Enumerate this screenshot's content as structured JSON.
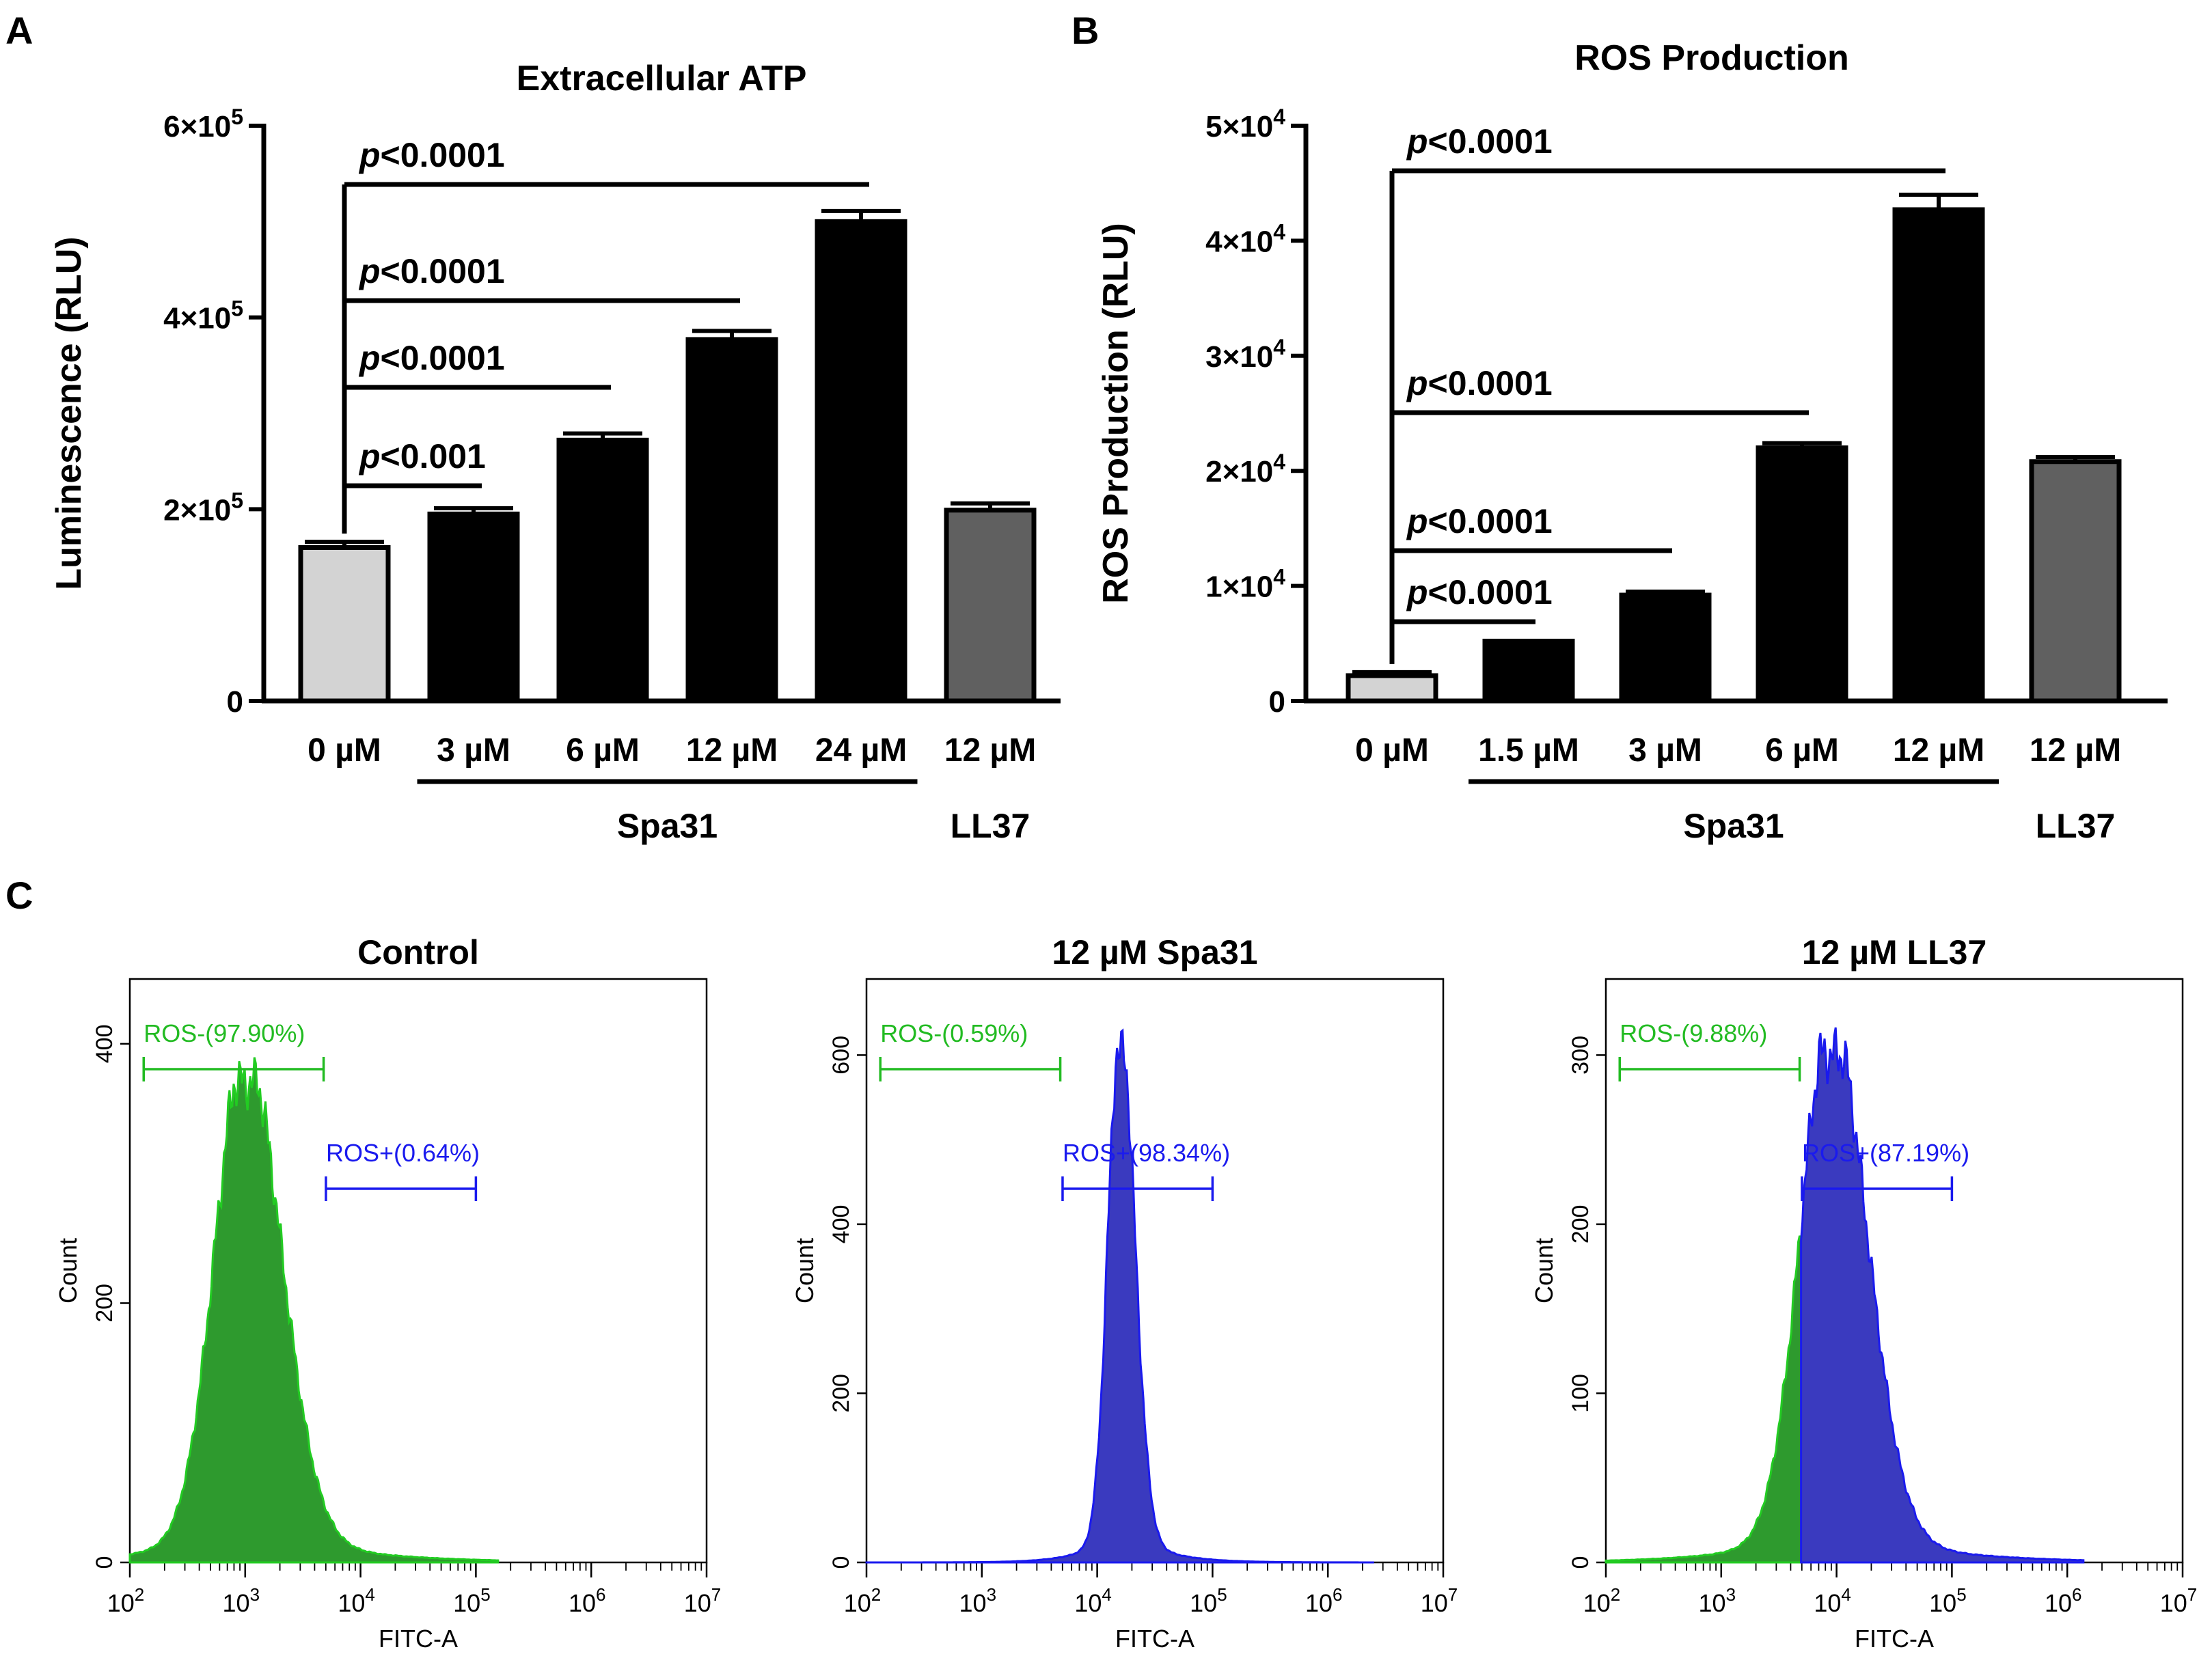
{
  "panels": {
    "A": "A",
    "B": "B",
    "C": "C"
  },
  "chart_data": [
    {
      "id": "A",
      "type": "bar",
      "title": "Extracellular ATP",
      "ylabel": "Luminescence (RLU)",
      "ylim": [
        0,
        600000
      ],
      "yticks": [
        {
          "value": 0,
          "mant": "0",
          "exp": ""
        },
        {
          "value": 200000,
          "mant": "2×10",
          "exp": "5"
        },
        {
          "value": 400000,
          "mant": "4×10",
          "exp": "5"
        },
        {
          "value": 600000,
          "mant": "6×10",
          "exp": "5"
        }
      ],
      "categories": [
        "0 µM",
        "3 µM",
        "6 µM",
        "12 µM",
        "24 µM",
        "12 µM"
      ],
      "values": [
        160000,
        195000,
        272000,
        377000,
        500000,
        199000
      ],
      "errors": [
        6000,
        6000,
        7000,
        9000,
        11000,
        7000
      ],
      "colors": [
        "#d3d3d3",
        "#000000",
        "#000000",
        "#000000",
        "#000000",
        "#606060"
      ],
      "groups": [
        {
          "label": "Spa31",
          "from": 1,
          "to": 4
        },
        {
          "label": "LL37",
          "from": 5,
          "to": 5
        }
      ],
      "comparisons": [
        {
          "from": 0,
          "to": 1,
          "p": "<0.001"
        },
        {
          "from": 0,
          "to": 2,
          "p": "<0.0001"
        },
        {
          "from": 0,
          "to": 3,
          "p": "<0.0001"
        },
        {
          "from": 0,
          "to": 4,
          "p": "<0.0001"
        }
      ]
    },
    {
      "id": "B",
      "type": "bar",
      "title": "ROS Production",
      "ylabel": "ROS Production (RLU)",
      "ylim": [
        0,
        50000
      ],
      "yticks": [
        {
          "value": 0,
          "mant": "0",
          "exp": ""
        },
        {
          "value": 10000,
          "mant": "1×10",
          "exp": "4"
        },
        {
          "value": 20000,
          "mant": "2×10",
          "exp": "4"
        },
        {
          "value": 30000,
          "mant": "3×10",
          "exp": "4"
        },
        {
          "value": 40000,
          "mant": "4×10",
          "exp": "4"
        },
        {
          "value": 50000,
          "mant": "5×10",
          "exp": "4"
        }
      ],
      "categories": [
        "0 µM",
        "1.5 µM",
        "3 µM",
        "6 µM",
        "12 µM",
        "12 µM"
      ],
      "values": [
        2200,
        5200,
        9200,
        22000,
        42700,
        20800
      ],
      "errors": [
        300,
        0,
        300,
        400,
        1300,
        400
      ],
      "colors": [
        "#d3d3d3",
        "#000000",
        "#000000",
        "#000000",
        "#000000",
        "#606060"
      ],
      "groups": [
        {
          "label": "Spa31",
          "from": 1,
          "to": 4
        },
        {
          "label": "LL37",
          "from": 5,
          "to": 5
        }
      ],
      "comparisons": [
        {
          "from": 0,
          "to": 1,
          "p": "<0.0001"
        },
        {
          "from": 0,
          "to": 2,
          "p": "<0.0001"
        },
        {
          "from": 0,
          "to": 3,
          "p": "<0.0001"
        },
        {
          "from": 0,
          "to": 4,
          "p": "<0.0001"
        }
      ]
    },
    {
      "id": "C1",
      "type": "histogram",
      "title": "Control",
      "xlabel": "FITC-A",
      "ylabel": "Count",
      "xscale": "log",
      "xlim": [
        100,
        10000000
      ],
      "ylim": [
        0,
        450
      ],
      "yticks": [
        0,
        200,
        400
      ],
      "xticks": [
        2,
        3,
        4,
        5,
        6,
        7
      ],
      "peak_log10": 3.0,
      "peak_count": 370,
      "width_log10": 0.25,
      "color": "#2e9a2e",
      "edge": "#22cc22",
      "gates": [
        {
          "label": "ROS-(97.90%)",
          "from_log10": 2.12,
          "to_log10": 3.68,
          "color": "#22bb22",
          "row": 0
        },
        {
          "label": "ROS+(0.64%)",
          "from_log10": 3.7,
          "to_log10": 5.0,
          "color": "#1a1aee",
          "row": 1
        }
      ]
    },
    {
      "id": "C2",
      "type": "histogram",
      "title": "12 µM Spa31",
      "xlabel": "FITC-A",
      "ylabel": "Count",
      "xscale": "log",
      "xlim": [
        100,
        10000000
      ],
      "ylim": [
        0,
        690
      ],
      "yticks": [
        0,
        200,
        400,
        600
      ],
      "xticks": [
        2,
        3,
        4,
        5,
        6,
        7
      ],
      "peak_log10": 4.2,
      "peak_count": 600,
      "width_log10": 0.1,
      "color": "#3a3abf",
      "edge": "#1a1aee",
      "gates": [
        {
          "label": "ROS-(0.59%)",
          "from_log10": 2.12,
          "to_log10": 3.68,
          "color": "#22bb22",
          "row": 0
        },
        {
          "label": "ROS+(98.34%)",
          "from_log10": 3.7,
          "to_log10": 5.0,
          "color": "#1a1aee",
          "row": 1
        }
      ]
    },
    {
      "id": "C3",
      "type": "histogram",
      "title": "12 µM LL37",
      "xlabel": "FITC-A",
      "ylabel": "Count",
      "xscale": "log",
      "xlim": [
        100,
        10000000
      ],
      "ylim": [
        0,
        345
      ],
      "yticks": [
        0,
        100,
        200,
        300
      ],
      "xticks": [
        2,
        3,
        4,
        5,
        6,
        7
      ],
      "peak_log10": 3.95,
      "peak_count": 300,
      "width_log10": 0.25,
      "split_log10": 3.69,
      "color": "#3a3abf",
      "edge": "#1a1aee",
      "left_color": "#2e9a2e",
      "left_edge": "#22cc22",
      "gates": [
        {
          "label": "ROS-(9.88%)",
          "from_log10": 2.12,
          "to_log10": 3.68,
          "color": "#22bb22",
          "row": 0
        },
        {
          "label": "ROS+(87.19%)",
          "from_log10": 3.7,
          "to_log10": 5.0,
          "color": "#1a1aee",
          "row": 1
        }
      ]
    }
  ]
}
